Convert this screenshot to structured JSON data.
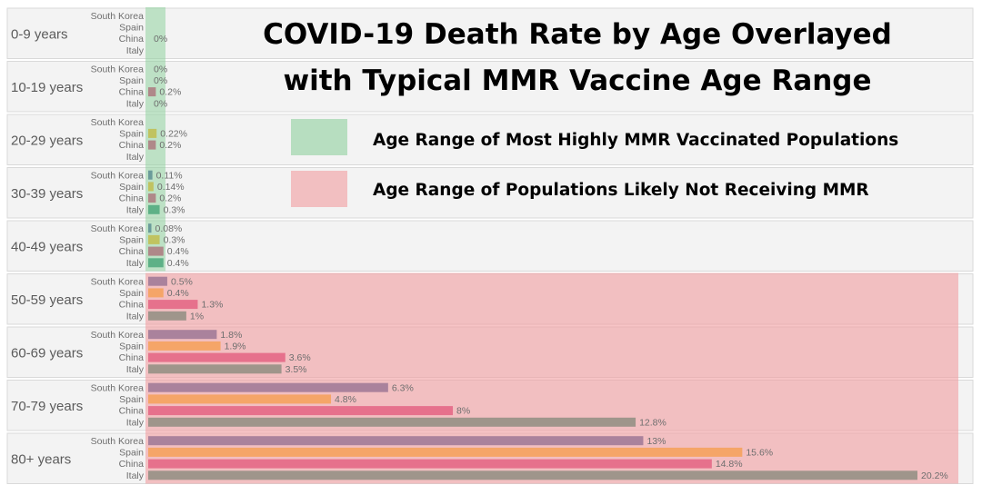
{
  "chart_data": {
    "type": "bar",
    "orientation": "horizontal",
    "title_lines": [
      "COVID-19 Death Rate by Age Overlayed",
      "with Typical MMR Vaccine Age Range"
    ],
    "legend": [
      {
        "label": "Age Range of Most Highly MMR Vaccinated Populations",
        "color": "#8fd19e"
      },
      {
        "label": "Age Range of Populations Likely Not Receiving MMR",
        "color": "#f29ca0"
      }
    ],
    "value_unit": "%",
    "xlim": [
      0,
      20.2
    ],
    "series": [
      {
        "name": "South Korea",
        "color": "#3f5a96"
      },
      {
        "name": "Spain",
        "color": "#fbb116"
      },
      {
        "name": "China",
        "color": "#d4306f"
      },
      {
        "name": "Italy",
        "color": "#23896b"
      }
    ],
    "groups": [
      {
        "label": "0-9 years",
        "values": [
          null,
          null,
          0,
          null
        ],
        "texts": [
          "",
          "",
          "0%",
          ""
        ]
      },
      {
        "label": "10-19 years",
        "values": [
          0,
          0,
          0.2,
          0
        ],
        "texts": [
          "0%",
          "0%",
          "0.2%",
          "0%"
        ]
      },
      {
        "label": "20-29 years",
        "values": [
          null,
          0.22,
          0.2,
          null
        ],
        "texts": [
          "",
          "0.22%",
          "0.2%",
          ""
        ]
      },
      {
        "label": "30-39 years",
        "values": [
          0.11,
          0.14,
          0.2,
          0.3
        ],
        "texts": [
          "0.11%",
          "0.14%",
          "0.2%",
          "0.3%"
        ]
      },
      {
        "label": "40-49 years",
        "values": [
          0.08,
          0.3,
          0.4,
          0.4
        ],
        "texts": [
          "0.08%",
          "0.3%",
          "0.4%",
          "0.4%"
        ]
      },
      {
        "label": "50-59 years",
        "values": [
          0.5,
          0.4,
          1.3,
          1
        ],
        "texts": [
          "0.5%",
          "0.4%",
          "1.3%",
          "1%"
        ]
      },
      {
        "label": "60-69 years",
        "values": [
          1.8,
          1.9,
          3.6,
          3.5
        ],
        "texts": [
          "1.8%",
          "1.9%",
          "3.6%",
          "3.5%"
        ]
      },
      {
        "label": "70-79 years",
        "values": [
          6.3,
          4.8,
          8,
          12.8
        ],
        "texts": [
          "6.3%",
          "4.8%",
          "8%",
          "12.8%"
        ]
      },
      {
        "label": "80+ years",
        "values": [
          13,
          15.6,
          14.8,
          20.2
        ],
        "texts": [
          "13%",
          "15.6%",
          "14.8%",
          "20.2%"
        ]
      }
    ],
    "overlays": [
      {
        "legend_index": 0,
        "from_group": "0-9 years",
        "to_group": "40-49 years",
        "extent": "narrow band over the youngest age groups"
      },
      {
        "legend_index": 1,
        "from_group": "50-59 years",
        "to_group": "80+ years",
        "extent": "full width over older age groups"
      }
    ]
  }
}
